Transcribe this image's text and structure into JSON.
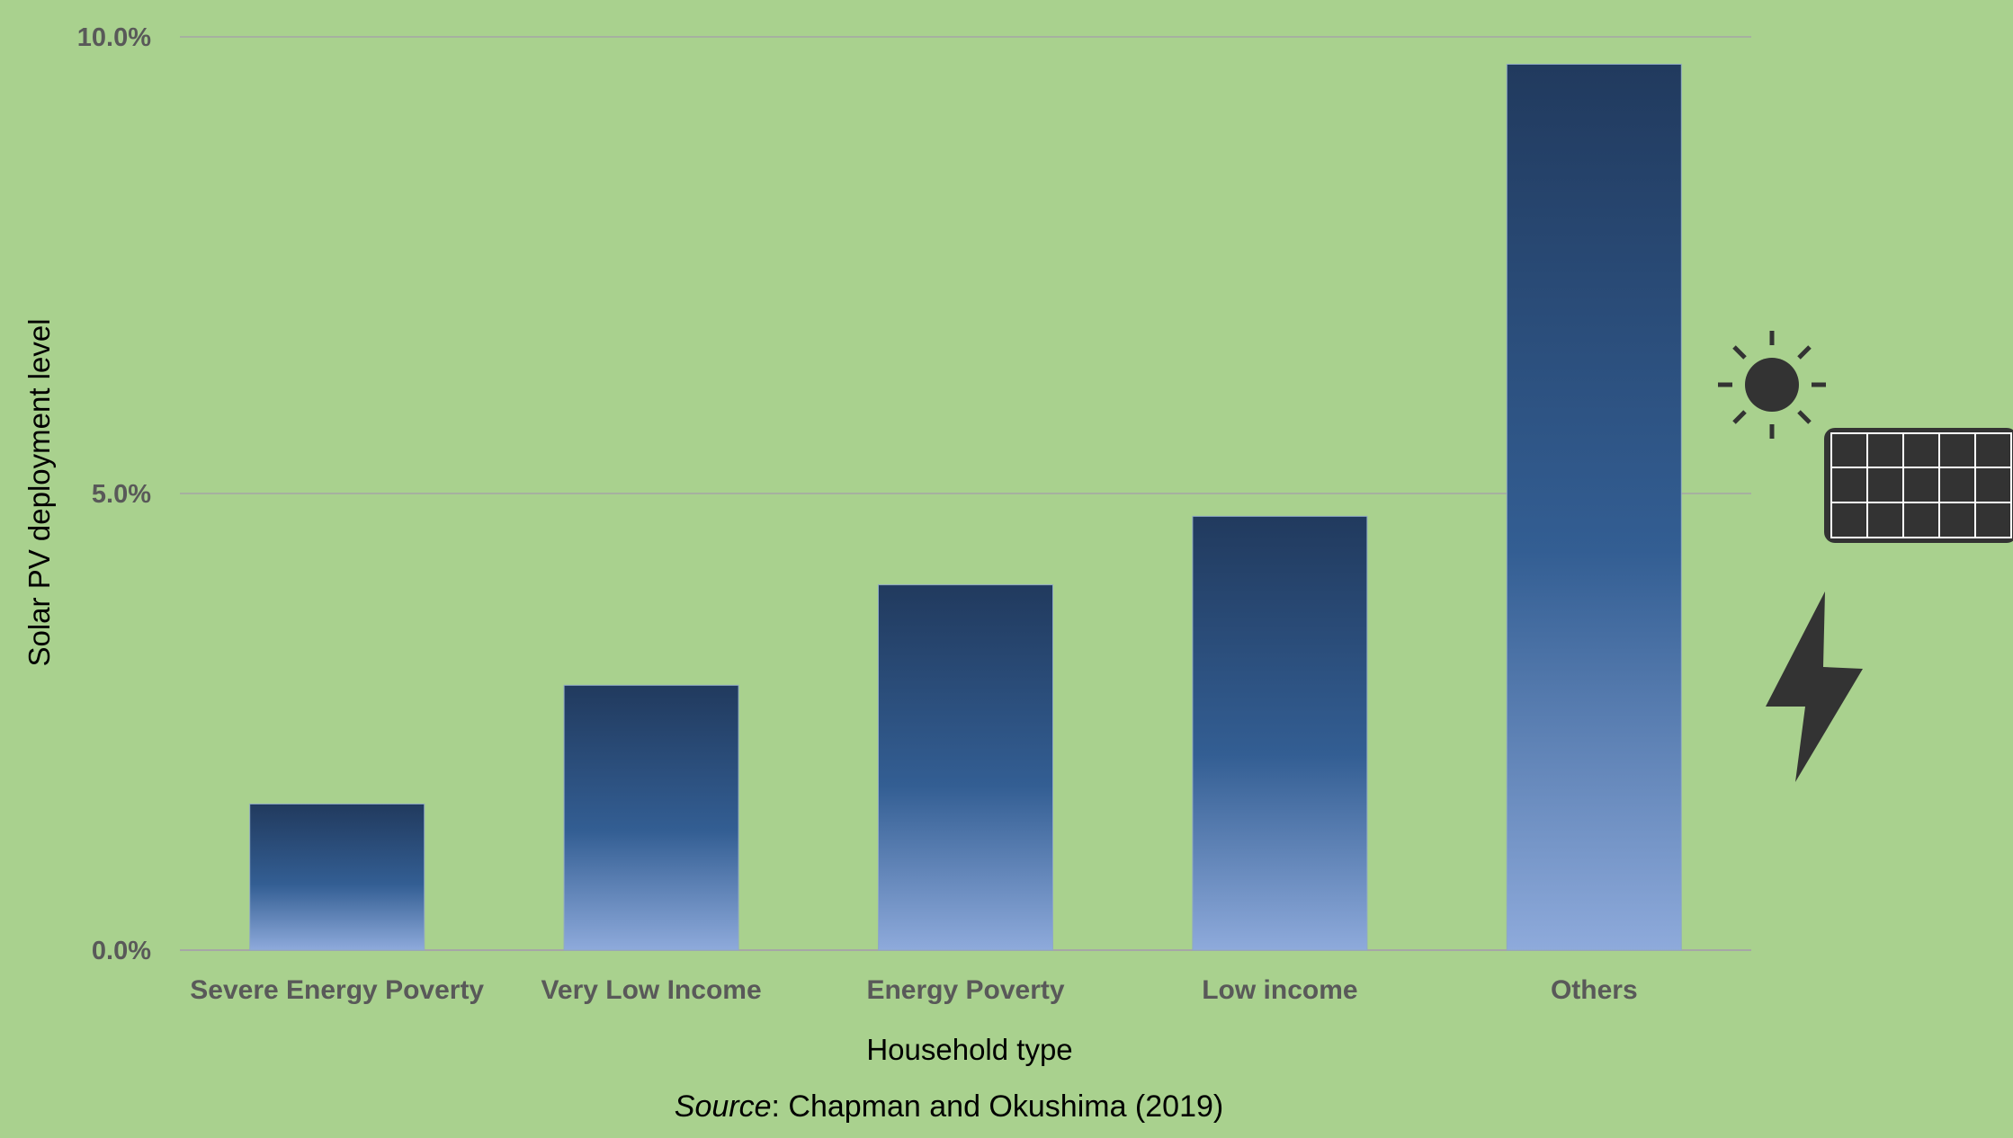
{
  "chart_data": {
    "type": "bar",
    "categories": [
      "Severe Energy Poverty",
      "Very Low Income",
      "Energy Poverty",
      "Low income",
      "Others"
    ],
    "values": [
      1.6,
      2.9,
      4.0,
      4.75,
      9.7
    ],
    "value_unit": "%",
    "ylim": [
      0,
      10
    ],
    "yticks": [
      0,
      5,
      10
    ],
    "ytick_labels": [
      "0.0%",
      "5.0%",
      "10.0%"
    ],
    "xlabel": "Household type",
    "ylabel": "Solar PV deployment level",
    "grid": true,
    "legend": "none"
  },
  "source": {
    "label": "Source",
    "text": ": Chapman and Okushima (2019)"
  },
  "colors": {
    "background": "#a9d18e",
    "bar_top": "#213a5e",
    "bar_mid": "#335e93",
    "bar_bottom": "#8eaadb",
    "gridline": "#a6a6a6",
    "icon": "#333333"
  },
  "decorations": [
    "sun-icon",
    "solar-panel-icon",
    "lightning-bolt-icon"
  ]
}
